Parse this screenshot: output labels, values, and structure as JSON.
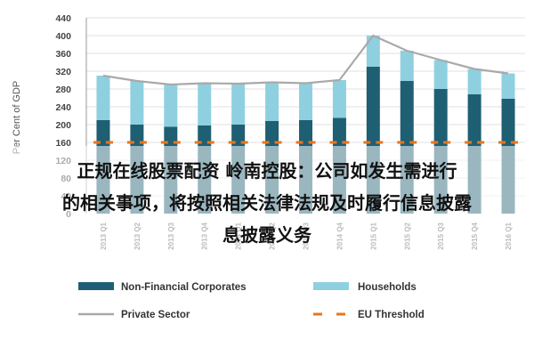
{
  "chart_data": {
    "type": "bar",
    "stacked": true,
    "ylabel": "Per Cent of GDP",
    "ylim": [
      0,
      440
    ],
    "yticks": [
      0,
      40,
      80,
      120,
      160,
      200,
      240,
      280,
      320,
      360,
      400,
      440
    ],
    "categories": [
      "2013 Q1",
      "2013 Q2",
      "2013 Q3",
      "2013 Q4",
      "2014 Q1",
      "2014 Q2",
      "2014 Q3",
      "2014 Q4",
      "2015 Q1",
      "2015 Q2",
      "2015 Q3",
      "2015 Q4",
      "2016 Q1"
    ],
    "series": [
      {
        "name": "Non-Financial Corporates",
        "kind": "bar",
        "color": "#1f5f73",
        "values": [
          210,
          200,
          195,
          198,
          200,
          208,
          210,
          215,
          330,
          298,
          280,
          268,
          258
        ]
      },
      {
        "name": "Households",
        "kind": "bar",
        "color": "#8fd0e0",
        "values": [
          100,
          98,
          95,
          95,
          92,
          87,
          83,
          85,
          70,
          68,
          65,
          57,
          57
        ]
      },
      {
        "name": "Private Sector",
        "kind": "line",
        "color": "#a9a9a9",
        "values": [
          310,
          298,
          290,
          293,
          292,
          295,
          293,
          300,
          400,
          366,
          345,
          325,
          315
        ]
      },
      {
        "name": "EU Threshold",
        "kind": "dashed",
        "color": "#e8761e",
        "values": [
          160,
          160,
          160,
          160,
          160,
          160,
          160,
          160,
          160,
          160,
          160,
          160,
          160
        ]
      }
    ],
    "legend_position": "bottom",
    "grid": true
  },
  "overlay": {
    "lines": [
      "正规在线股票配资 岭南控股：公司如发生需进行",
      "的相关事项，将按照相关法律法规及时履行信息披露",
      "息披露义务"
    ]
  }
}
